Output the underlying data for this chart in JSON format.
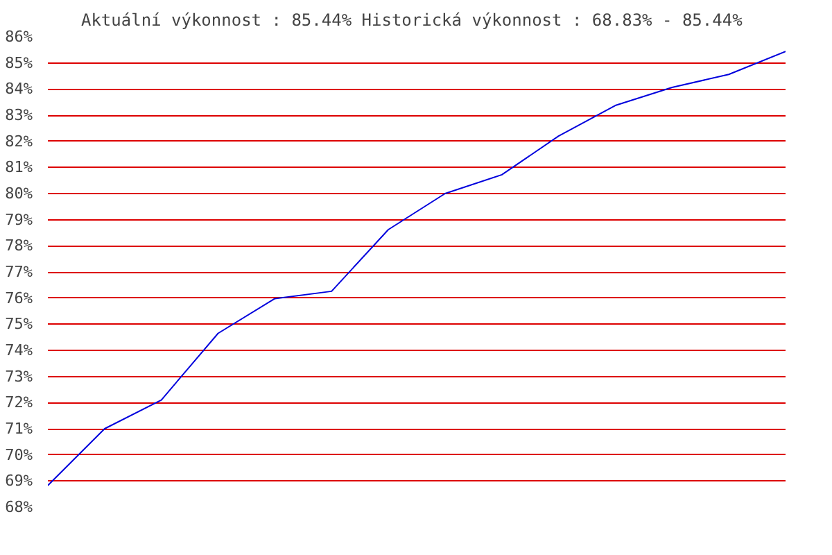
{
  "chart_data": {
    "type": "line",
    "title": "Aktuální výkonnost : 85.44%  Historická výkonnost : 68.83% - 85.44%",
    "categories": [
      null,
      null,
      null,
      null,
      null,
      null,
      null,
      null,
      null,
      null,
      null,
      null,
      null,
      null
    ],
    "series": [
      {
        "color": "#0000dd",
        "values": [
          68.83,
          71.0,
          72.1,
          74.65,
          75.98,
          76.26,
          78.62,
          80.0,
          80.72,
          82.2,
          83.37,
          84.06,
          84.56,
          85.44
        ]
      }
    ],
    "ylim": [
      68,
      86
    ],
    "yticks": [
      {
        "value": 68,
        "label": "68%"
      },
      {
        "value": 69,
        "label": "69%"
      },
      {
        "value": 70,
        "label": "70%"
      },
      {
        "value": 71,
        "label": "71%"
      },
      {
        "value": 72,
        "label": "72%"
      },
      {
        "value": 73,
        "label": "73%"
      },
      {
        "value": 74,
        "label": "74%"
      },
      {
        "value": 75,
        "label": "75%"
      },
      {
        "value": 76,
        "label": "76%"
      },
      {
        "value": 77,
        "label": "77%"
      },
      {
        "value": 78,
        "label": "78%"
      },
      {
        "value": 79,
        "label": "79%"
      },
      {
        "value": 80,
        "label": "80%"
      },
      {
        "value": 81,
        "label": "81%"
      },
      {
        "value": 82,
        "label": "82%"
      },
      {
        "value": 83,
        "label": "83%"
      },
      {
        "value": 84,
        "label": "84%"
      },
      {
        "value": 85,
        "label": "85%"
      },
      {
        "value": 86,
        "label": "86%"
      }
    ],
    "grid": "y",
    "tick_labels": "y",
    "marker": "none",
    "line_style": "solid"
  }
}
